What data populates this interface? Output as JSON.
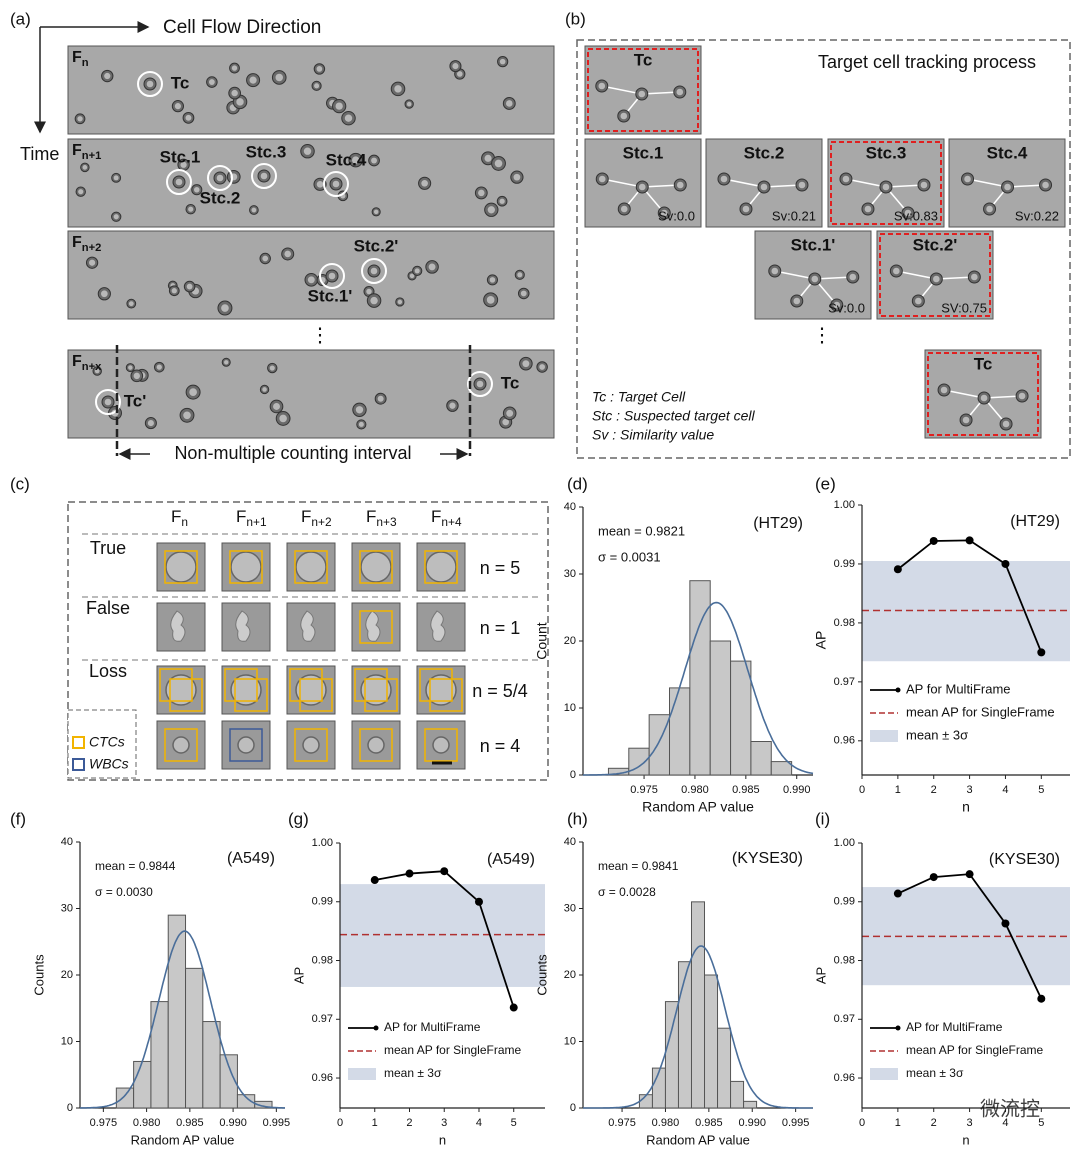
{
  "panel_labels": [
    "(a)",
    "(b)",
    "(c)",
    "(d)",
    "(e)",
    "(f)",
    "(g)",
    "(h)",
    "(i)"
  ],
  "panel_a": {
    "flow_label": "Cell Flow Direction",
    "time_label": "Time",
    "frames": [
      {
        "name": "F",
        "sub": "n",
        "labels": [
          "Tc"
        ]
      },
      {
        "name": "F",
        "sub": "n+1",
        "labels": [
          "Stc.1",
          "Stc.2",
          "Stc.3",
          "Stc.4"
        ]
      },
      {
        "name": "F",
        "sub": "n+2",
        "labels": [
          "Stc.2'",
          "Stc.1'"
        ]
      },
      {
        "name": "F",
        "sub": "n+x",
        "labels": [
          "Tc'",
          "Tc"
        ]
      }
    ],
    "ellipsis": "⋮",
    "interval_label": "Non-multiple counting interval"
  },
  "panel_b": {
    "title": "Target cell tracking process",
    "boxes": [
      {
        "label": "Tc",
        "selected": true
      },
      {
        "label": "Stc.1",
        "sv": "Sv:0.0",
        "selected": false
      },
      {
        "label": "Stc.2",
        "sv": "Sv:0.21",
        "selected": false
      },
      {
        "label": "Stc.3",
        "sv": "Sv:0.83",
        "selected": true
      },
      {
        "label": "Stc.4",
        "sv": "Sv:0.22",
        "selected": false
      },
      {
        "label": "Stc.1'",
        "sv": "Sv:0.0",
        "selected": false
      },
      {
        "label": "Stc.2'",
        "sv": "SV:0.75",
        "selected": true
      },
      {
        "label": "Tc",
        "selected": true
      }
    ],
    "ellipsis": "⋮",
    "legend": [
      "Tc : Target Cell",
      "Stc : Suspected target cell",
      "Sv : Similarity value"
    ]
  },
  "panel_c": {
    "columns": [
      {
        "name": "F",
        "sub": "n"
      },
      {
        "name": "F",
        "sub": "n+1"
      },
      {
        "name": "F",
        "sub": "n+2"
      },
      {
        "name": "F",
        "sub": "n+3"
      },
      {
        "name": "F",
        "sub": "n+4"
      }
    ],
    "rows": [
      {
        "label": "True",
        "count": "n = 5"
      },
      {
        "label": "False",
        "count": "n = 1"
      },
      {
        "label": "Loss",
        "count": "n = 5/4"
      },
      {
        "count": "n = 4"
      }
    ],
    "legend": [
      {
        "name": "CTCs",
        "color": "#f2b400"
      },
      {
        "name": "WBCs",
        "color": "#3c5a98"
      }
    ]
  },
  "watermark": "微流控",
  "chart_data": [
    {
      "type": "histogram",
      "title": "(HT29)",
      "xlabel": "Random AP value",
      "ylabel": "Count",
      "color": "#c8c8c8",
      "curve_color": "#4a6e9a",
      "bins": [
        0.9715,
        0.9735,
        0.9755,
        0.9775,
        0.9795,
        0.9815,
        0.9835,
        0.9855,
        0.9875,
        0.9895
      ],
      "values": [
        1,
        4,
        9,
        13,
        29,
        20,
        17,
        5,
        2
      ],
      "fit": {
        "mean": 0.9821,
        "sd": 0.0031,
        "mean_label": "mean = 0.9821",
        "sd_label": "σ = 0.0031"
      },
      "xlim": [
        0.969,
        0.9916
      ],
      "xticks": [
        0.975,
        {
          "value": 0.98,
          "label": "0.980"
        },
        0.985,
        {
          "value": 0.99,
          "label": "0.990"
        }
      ],
      "ylim": [
        0,
        40
      ],
      "yticks": [
        0,
        10,
        20,
        30,
        40
      ]
    },
    {
      "type": "line",
      "title": "(HT29)",
      "xlabel": "n",
      "ylabel": "AP",
      "x": [
        1,
        2,
        3,
        4,
        5
      ],
      "series": [
        {
          "name": "AP for MultiFrame",
          "color": "#000000",
          "values": [
            0.9891,
            0.9939,
            0.994,
            0.99,
            0.975
          ]
        }
      ],
      "mean_line": {
        "name": "mean AP for SingleFrame",
        "value": 0.9821,
        "color": "#b03030"
      },
      "band": {
        "name": "mean ± 3σ",
        "lower": 0.9735,
        "upper": 0.9905,
        "color": "#d3dae7"
      },
      "xlim": [
        0,
        5.8
      ],
      "xticks": [
        0,
        1,
        2,
        3,
        4,
        5
      ],
      "ylim": [
        0.9542,
        1.0
      ],
      "yticks": [
        0.96,
        0.97,
        0.98,
        0.99,
        {
          "value": 1,
          "label": "1.00"
        }
      ]
    },
    {
      "type": "histogram",
      "title": "(A549)",
      "xlabel": "Random AP value",
      "ylabel": "Counts",
      "color": "#c8c8c8",
      "curve_color": "#4a6e9a",
      "bins": [
        0.9765,
        0.9785,
        0.9805,
        0.9825,
        0.9845,
        0.9865,
        0.9885,
        0.9905,
        0.9925,
        0.9945
      ],
      "values": [
        3,
        7,
        16,
        29,
        21,
        13,
        8,
        2,
        1
      ],
      "fit": {
        "mean": 0.9844,
        "sd": 0.003,
        "mean_label": "mean = 0.9844",
        "sd_label": "σ = 0.0030"
      },
      "xlim": [
        0.9723,
        0.996
      ],
      "xticks": [
        0.975,
        {
          "value": 0.98,
          "label": "0.980"
        },
        0.985,
        {
          "value": 0.99,
          "label": "0.990"
        },
        0.995
      ],
      "ylim": [
        0,
        40
      ],
      "yticks": [
        0,
        10,
        20,
        30,
        40
      ]
    },
    {
      "type": "line",
      "title": "(A549)",
      "xlabel": "n",
      "ylabel": "AP",
      "x": [
        1,
        2,
        3,
        4,
        5
      ],
      "series": [
        {
          "name": "AP for MultiFrame",
          "color": "#000000",
          "values": [
            0.9937,
            0.9948,
            0.9952,
            0.99,
            0.972
          ]
        }
      ],
      "mean_line": {
        "name": "mean AP for SingleFrame",
        "value": 0.9844,
        "color": "#b03030"
      },
      "band": {
        "name": "mean ± 3σ",
        "lower": 0.9755,
        "upper": 0.993,
        "color": "#d3dae7"
      },
      "xlim": [
        0,
        5.9
      ],
      "xticks": [
        0,
        1,
        2,
        3,
        4,
        5
      ],
      "ylim": [
        0.9549,
        1.0
      ],
      "yticks": [
        0.96,
        0.97,
        0.98,
        0.99,
        {
          "value": 1,
          "label": "1.00"
        }
      ]
    },
    {
      "type": "histogram",
      "title": "(KYSE30)",
      "xlabel": "Random AP value",
      "ylabel": "Counts",
      "color": "#c8c8c8",
      "curve_color": "#4a6e9a",
      "bins": [
        0.977,
        0.9785,
        0.98,
        0.9815,
        0.983,
        0.9845,
        0.986,
        0.9875,
        0.989,
        0.9905
      ],
      "values": [
        2,
        6,
        16,
        22,
        31,
        20,
        12,
        4,
        1
      ],
      "fit": {
        "mean": 0.9841,
        "sd": 0.0028,
        "mean_label": "mean = 0.9841",
        "sd_label": "σ = 0.0028"
      },
      "xlim": [
        0.9705,
        0.997
      ],
      "xticks": [
        0.975,
        {
          "value": 0.98,
          "label": "0.980"
        },
        0.985,
        {
          "value": 0.99,
          "label": "0.990"
        },
        0.995
      ],
      "ylim": [
        0,
        40
      ],
      "yticks": [
        0,
        10,
        20,
        30,
        40
      ]
    },
    {
      "type": "line",
      "title": "(KYSE30)",
      "xlabel": "n",
      "ylabel": "AP",
      "x": [
        1,
        2,
        3,
        4,
        5
      ],
      "series": [
        {
          "name": "AP for MultiFrame",
          "color": "#000000",
          "values": [
            0.9914,
            0.9942,
            0.9947,
            0.9863,
            0.9735
          ]
        }
      ],
      "mean_line": {
        "name": "mean AP for SingleFrame",
        "value": 0.9841,
        "color": "#b03030"
      },
      "band": {
        "name": "mean ± 3σ",
        "lower": 0.9758,
        "upper": 0.9925,
        "color": "#d3dae7"
      },
      "xlim": [
        0,
        5.8
      ],
      "xticks": [
        0,
        1,
        2,
        3,
        4,
        5
      ],
      "ylim": [
        0.9549,
        1.0
      ],
      "yticks": [
        0.96,
        0.97,
        0.98,
        0.99,
        {
          "value": 1,
          "label": "1.00"
        }
      ]
    }
  ]
}
